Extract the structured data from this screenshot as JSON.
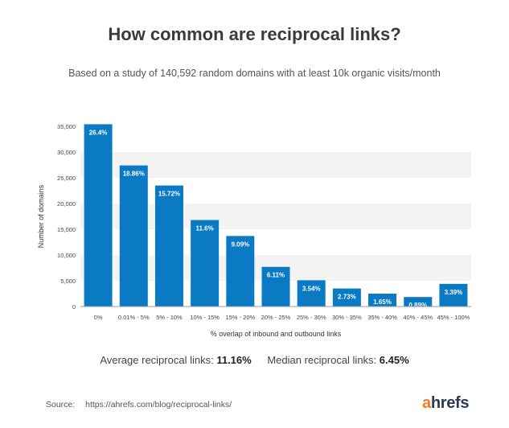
{
  "header": {
    "title": "How common are reciprocal links?",
    "subtitle": "Based on a study of 140,592 random domains with at least 10k organic visits/month"
  },
  "chart_data": {
    "type": "bar",
    "categories": [
      "0%",
      "0.01% - 5%",
      "5% - 10%",
      "10% - 15%",
      "15% - 20%",
      "20% - 25%",
      "25% - 30%",
      "30% - 35%",
      "35% - 40%",
      "40% - 45%",
      "45% - 100%"
    ],
    "values": [
      35400,
      27400,
      23500,
      16800,
      13700,
      7700,
      5100,
      3500,
      2500,
      1850,
      4400
    ],
    "data_labels": [
      "26.4%",
      "18.86%",
      "15.72%",
      "11.6%",
      "9.09%",
      "6.11%",
      "3.54%",
      "2.73%",
      "1.65%",
      "0.89%",
      "3.39%"
    ],
    "xlabel": "% overlap of inbound and outbound links",
    "ylabel": "Number of domains",
    "ylim": [
      0,
      35000
    ],
    "yticks": [
      0,
      5000,
      10000,
      15000,
      20000,
      25000,
      30000,
      35000
    ],
    "ytick_labels": [
      "0",
      "5,000",
      "10,000",
      "15,000",
      "20,000",
      "25,000",
      "30,000",
      "35,000"
    ],
    "bar_color": "#0a7ac4",
    "band_color": "#f3f3f3",
    "grid": true
  },
  "stats": {
    "average_label": "Average reciprocal links:",
    "average_value": "11.16%",
    "median_label": "Median reciprocal links:",
    "median_value": "6.45%"
  },
  "footer": {
    "source_label": "Source:",
    "source_url": "https://ahrefs.com/blog/reciprocal-links/",
    "logo_accent": "a",
    "logo_rest": "hrefs",
    "logo_accent_color": "#f07d22"
  }
}
